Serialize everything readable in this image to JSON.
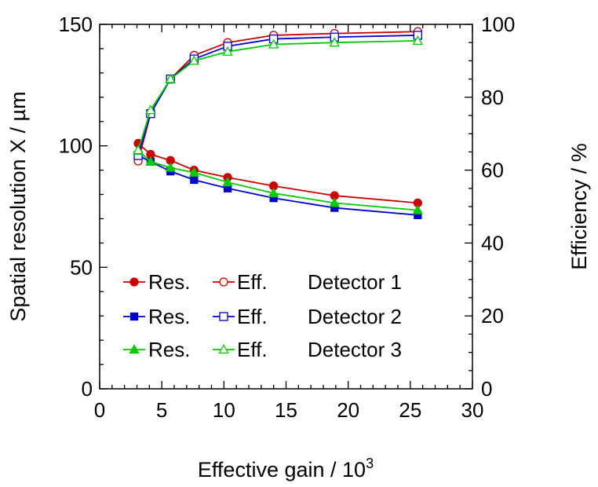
{
  "chart_data": {
    "type": "line",
    "xlabel": "Effective gain / 10",
    "xlabel_superscript": "3",
    "ylabel_left": "Spatial resolution X / µm",
    "ylabel_right": "Efficiency / %",
    "xlim": [
      0,
      30
    ],
    "ylim_left": [
      0,
      150
    ],
    "ylim_right": [
      0,
      100
    ],
    "xticks": [
      0,
      5,
      10,
      15,
      20,
      25,
      30
    ],
    "yticks_left": [
      0,
      50,
      100,
      150
    ],
    "yticks_right": [
      0,
      20,
      40,
      60,
      80,
      100
    ],
    "grid": false,
    "legend_position": "lower-left",
    "x": [
      3.1,
      4.1,
      5.7,
      7.6,
      10.3,
      14.0,
      18.9,
      25.6
    ],
    "series": [
      {
        "name": "Res.",
        "detector": "Detector 1",
        "axis": "left",
        "marker": "filled-circle",
        "color": "#cc0000",
        "values": [
          101,
          96.5,
          94,
          90,
          87,
          83.5,
          79.5,
          76.5
        ]
      },
      {
        "name": "Eff.",
        "detector": "Detector 1",
        "axis": "right",
        "marker": "open-circle",
        "color": "#cc0000",
        "values": [
          62.5,
          75.5,
          85,
          91.5,
          95,
          97,
          97.5,
          98
        ]
      },
      {
        "name": "Res.",
        "detector": "Detector 2",
        "axis": "left",
        "marker": "filled-square",
        "color": "#0000cc",
        "values": [
          96,
          93.5,
          89.5,
          86,
          82.5,
          78.5,
          74.5,
          71.5
        ]
      },
      {
        "name": "Eff.",
        "detector": "Detector 2",
        "axis": "right",
        "marker": "open-square",
        "color": "#0000cc",
        "values": [
          64,
          75.5,
          85,
          90.5,
          94,
          96,
          96.5,
          97
        ]
      },
      {
        "name": "Res.",
        "detector": "Detector 3",
        "axis": "left",
        "marker": "filled-triangle",
        "color": "#00cc00",
        "values": [
          98,
          93.5,
          91,
          89,
          85,
          80.5,
          76.5,
          73.5
        ]
      },
      {
        "name": "Eff.",
        "detector": "Detector 3",
        "axis": "right",
        "marker": "open-triangle",
        "color": "#00cc00",
        "values": [
          65.5,
          76.5,
          85,
          90,
          92.5,
          94.5,
          95,
          95.5
        ]
      }
    ],
    "legend": [
      {
        "res_label": "Res.",
        "eff_label": "Eff.",
        "detector": "Detector 1",
        "color": "#cc0000",
        "res_marker": "filled-circle",
        "eff_marker": "open-circle"
      },
      {
        "res_label": "Res.",
        "eff_label": "Eff.",
        "detector": "Detector 2",
        "color": "#0000cc",
        "res_marker": "filled-square",
        "eff_marker": "open-square"
      },
      {
        "res_label": "Res.",
        "eff_label": "Eff.",
        "detector": "Detector 3",
        "color": "#00cc00",
        "res_marker": "filled-triangle",
        "eff_marker": "open-triangle"
      }
    ]
  }
}
